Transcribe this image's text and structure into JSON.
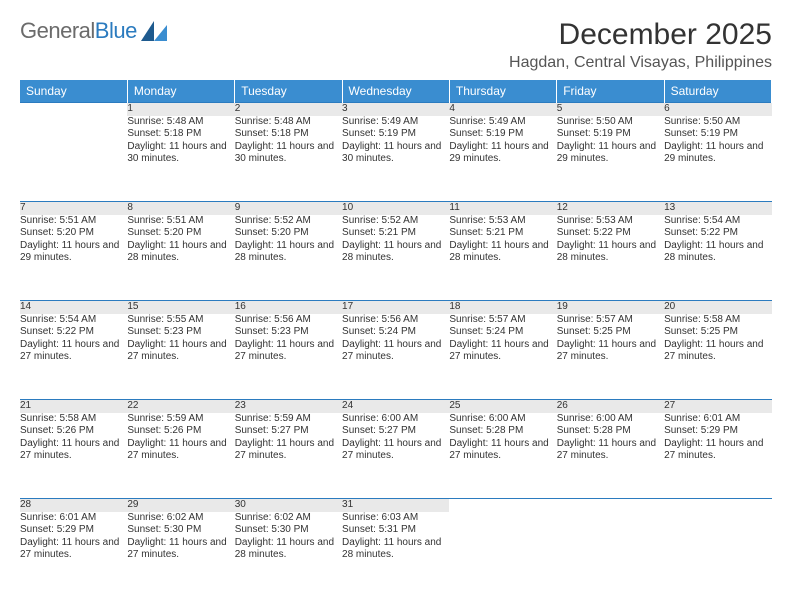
{
  "logo": {
    "text1": "General",
    "text2": "Blue"
  },
  "title": "December 2025",
  "location": "Hagdan, Central Visayas, Philippines",
  "colors": {
    "header_bg": "#3a8dd0",
    "header_text": "#ffffff",
    "daynum_bg": "#e9e9e9",
    "border": "#2b7bbf",
    "body_text": "#333333",
    "logo_gray": "#6b6b6b",
    "logo_blue": "#2b7bbf"
  },
  "weekdays": [
    "Sunday",
    "Monday",
    "Tuesday",
    "Wednesday",
    "Thursday",
    "Friday",
    "Saturday"
  ],
  "weeks": [
    {
      "nums": [
        "",
        "1",
        "2",
        "3",
        "4",
        "5",
        "6"
      ],
      "cells": [
        null,
        {
          "sr": "Sunrise: 5:48 AM",
          "ss": "Sunset: 5:18 PM",
          "dl": "Daylight: 11 hours and 30 minutes."
        },
        {
          "sr": "Sunrise: 5:48 AM",
          "ss": "Sunset: 5:18 PM",
          "dl": "Daylight: 11 hours and 30 minutes."
        },
        {
          "sr": "Sunrise: 5:49 AM",
          "ss": "Sunset: 5:19 PM",
          "dl": "Daylight: 11 hours and 30 minutes."
        },
        {
          "sr": "Sunrise: 5:49 AM",
          "ss": "Sunset: 5:19 PM",
          "dl": "Daylight: 11 hours and 29 minutes."
        },
        {
          "sr": "Sunrise: 5:50 AM",
          "ss": "Sunset: 5:19 PM",
          "dl": "Daylight: 11 hours and 29 minutes."
        },
        {
          "sr": "Sunrise: 5:50 AM",
          "ss": "Sunset: 5:19 PM",
          "dl": "Daylight: 11 hours and 29 minutes."
        }
      ]
    },
    {
      "nums": [
        "7",
        "8",
        "9",
        "10",
        "11",
        "12",
        "13"
      ],
      "cells": [
        {
          "sr": "Sunrise: 5:51 AM",
          "ss": "Sunset: 5:20 PM",
          "dl": "Daylight: 11 hours and 29 minutes."
        },
        {
          "sr": "Sunrise: 5:51 AM",
          "ss": "Sunset: 5:20 PM",
          "dl": "Daylight: 11 hours and 28 minutes."
        },
        {
          "sr": "Sunrise: 5:52 AM",
          "ss": "Sunset: 5:20 PM",
          "dl": "Daylight: 11 hours and 28 minutes."
        },
        {
          "sr": "Sunrise: 5:52 AM",
          "ss": "Sunset: 5:21 PM",
          "dl": "Daylight: 11 hours and 28 minutes."
        },
        {
          "sr": "Sunrise: 5:53 AM",
          "ss": "Sunset: 5:21 PM",
          "dl": "Daylight: 11 hours and 28 minutes."
        },
        {
          "sr": "Sunrise: 5:53 AM",
          "ss": "Sunset: 5:22 PM",
          "dl": "Daylight: 11 hours and 28 minutes."
        },
        {
          "sr": "Sunrise: 5:54 AM",
          "ss": "Sunset: 5:22 PM",
          "dl": "Daylight: 11 hours and 28 minutes."
        }
      ]
    },
    {
      "nums": [
        "14",
        "15",
        "16",
        "17",
        "18",
        "19",
        "20"
      ],
      "cells": [
        {
          "sr": "Sunrise: 5:54 AM",
          "ss": "Sunset: 5:22 PM",
          "dl": "Daylight: 11 hours and 27 minutes."
        },
        {
          "sr": "Sunrise: 5:55 AM",
          "ss": "Sunset: 5:23 PM",
          "dl": "Daylight: 11 hours and 27 minutes."
        },
        {
          "sr": "Sunrise: 5:56 AM",
          "ss": "Sunset: 5:23 PM",
          "dl": "Daylight: 11 hours and 27 minutes."
        },
        {
          "sr": "Sunrise: 5:56 AM",
          "ss": "Sunset: 5:24 PM",
          "dl": "Daylight: 11 hours and 27 minutes."
        },
        {
          "sr": "Sunrise: 5:57 AM",
          "ss": "Sunset: 5:24 PM",
          "dl": "Daylight: 11 hours and 27 minutes."
        },
        {
          "sr": "Sunrise: 5:57 AM",
          "ss": "Sunset: 5:25 PM",
          "dl": "Daylight: 11 hours and 27 minutes."
        },
        {
          "sr": "Sunrise: 5:58 AM",
          "ss": "Sunset: 5:25 PM",
          "dl": "Daylight: 11 hours and 27 minutes."
        }
      ]
    },
    {
      "nums": [
        "21",
        "22",
        "23",
        "24",
        "25",
        "26",
        "27"
      ],
      "cells": [
        {
          "sr": "Sunrise: 5:58 AM",
          "ss": "Sunset: 5:26 PM",
          "dl": "Daylight: 11 hours and 27 minutes."
        },
        {
          "sr": "Sunrise: 5:59 AM",
          "ss": "Sunset: 5:26 PM",
          "dl": "Daylight: 11 hours and 27 minutes."
        },
        {
          "sr": "Sunrise: 5:59 AM",
          "ss": "Sunset: 5:27 PM",
          "dl": "Daylight: 11 hours and 27 minutes."
        },
        {
          "sr": "Sunrise: 6:00 AM",
          "ss": "Sunset: 5:27 PM",
          "dl": "Daylight: 11 hours and 27 minutes."
        },
        {
          "sr": "Sunrise: 6:00 AM",
          "ss": "Sunset: 5:28 PM",
          "dl": "Daylight: 11 hours and 27 minutes."
        },
        {
          "sr": "Sunrise: 6:00 AM",
          "ss": "Sunset: 5:28 PM",
          "dl": "Daylight: 11 hours and 27 minutes."
        },
        {
          "sr": "Sunrise: 6:01 AM",
          "ss": "Sunset: 5:29 PM",
          "dl": "Daylight: 11 hours and 27 minutes."
        }
      ]
    },
    {
      "nums": [
        "28",
        "29",
        "30",
        "31",
        "",
        "",
        ""
      ],
      "cells": [
        {
          "sr": "Sunrise: 6:01 AM",
          "ss": "Sunset: 5:29 PM",
          "dl": "Daylight: 11 hours and 27 minutes."
        },
        {
          "sr": "Sunrise: 6:02 AM",
          "ss": "Sunset: 5:30 PM",
          "dl": "Daylight: 11 hours and 27 minutes."
        },
        {
          "sr": "Sunrise: 6:02 AM",
          "ss": "Sunset: 5:30 PM",
          "dl": "Daylight: 11 hours and 28 minutes."
        },
        {
          "sr": "Sunrise: 6:03 AM",
          "ss": "Sunset: 5:31 PM",
          "dl": "Daylight: 11 hours and 28 minutes."
        },
        null,
        null,
        null
      ]
    }
  ]
}
